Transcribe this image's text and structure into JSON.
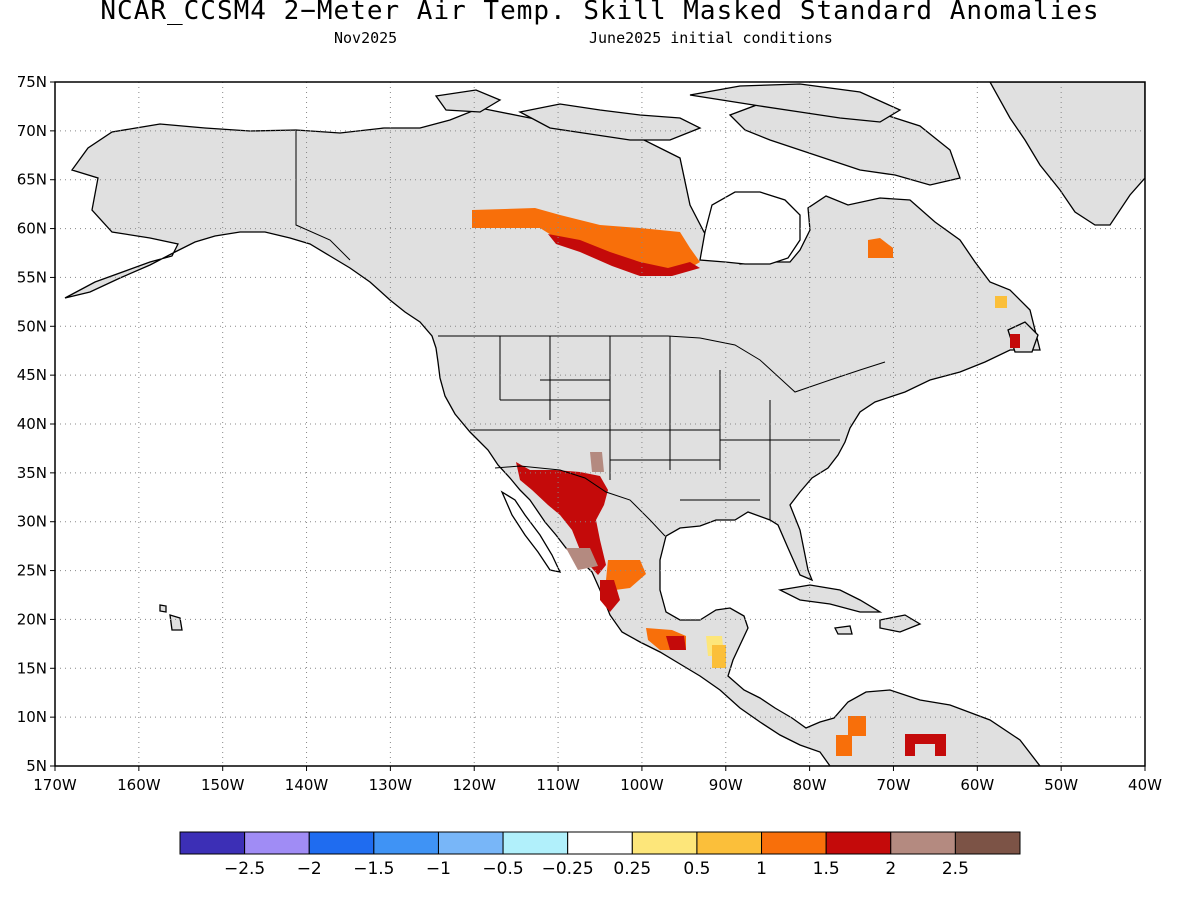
{
  "title": "NCAR_CCSM4 2−Meter Air Temp. Skill Masked Standard Anomalies",
  "subtitle_left": "Nov2025",
  "subtitle_right": "June2025 initial conditions",
  "map": {
    "lon_range": [
      -170,
      -40
    ],
    "lat_range": [
      5,
      75
    ],
    "lat_ticks": [
      "75N",
      "70N",
      "65N",
      "60N",
      "55N",
      "50N",
      "45N",
      "40N",
      "35N",
      "30N",
      "25N",
      "20N",
      "15N",
      "10N",
      "5N"
    ],
    "lon_ticks": [
      "170W",
      "160W",
      "150W",
      "140W",
      "130W",
      "120W",
      "110W",
      "100W",
      "90W",
      "80W",
      "70W",
      "60W",
      "50W",
      "40W"
    ],
    "grid": "dotted",
    "land_color": "#e0e0e0",
    "ocean_color": "#ffffff"
  },
  "colorbar": {
    "colors": [
      "#3c2fb6",
      "#a08cf5",
      "#1f6cf0",
      "#3f93f5",
      "#78b6f8",
      "#b1f0fb",
      "#ffffff",
      "#fde67a",
      "#fbbf3a",
      "#f86f0a",
      "#c40a0a",
      "#b48a80",
      "#7c5346"
    ],
    "labels": [
      "−2.5",
      "−2",
      "−1.5",
      "−1",
      "−0.5",
      "−0.25",
      "0.25",
      "0.5",
      "1",
      "1.5",
      "2",
      "2.5"
    ]
  },
  "anomaly_regions": [
    {
      "name": "northern-canada-band",
      "level": "1.5"
    },
    {
      "name": "hudson-bay-west",
      "level": "2"
    },
    {
      "name": "southwest-us-mexico",
      "level": "2"
    },
    {
      "name": "northwest-mexico-brown",
      "level": "2.5"
    },
    {
      "name": "central-mexico",
      "level": "1"
    },
    {
      "name": "southern-mexico",
      "level": "1.5"
    },
    {
      "name": "guatemala",
      "level": "0.5"
    },
    {
      "name": "quebec-east",
      "level": "1.5"
    },
    {
      "name": "newfoundland",
      "level": "2"
    },
    {
      "name": "colombia",
      "level": "1.5"
    },
    {
      "name": "venezuela",
      "level": "2"
    }
  ]
}
